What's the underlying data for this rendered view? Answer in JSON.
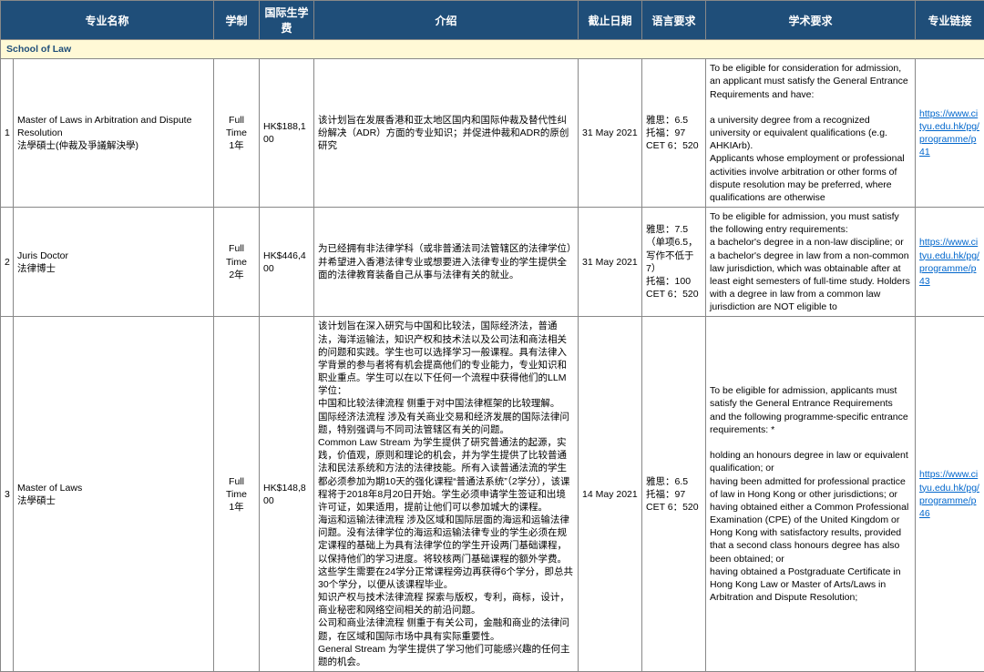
{
  "headers": {
    "name": "专业名称",
    "mode": "学制",
    "fee": "国际生学费",
    "intro": "介绍",
    "deadline": "截止日期",
    "lang": "语言要求",
    "acad": "学术要求",
    "link": "专业链接"
  },
  "section_label": "School of Law",
  "colors": {
    "header_bg": "#1f4e79",
    "header_fg": "#ffffff",
    "section_bg": "#fff9d6",
    "section_fg": "#1f4e79",
    "border": "#888888",
    "link": "#0066cc"
  },
  "rows": [
    {
      "idx": "1",
      "name": "Master of Laws in Arbitration and Dispute Resolution\n法學碩士(仲裁及爭議解決學)",
      "mode": "Full Time\n1年",
      "fee": "HK$188,100",
      "intro": "该计划旨在发展香港和亚太地区国内和国际仲裁及替代性纠纷解决（ADR）方面的专业知识；并促进仲裁和ADR的原创研究",
      "deadline": "31 May 2021",
      "lang": "雅思：6.5\n托福：97\nCET 6：520",
      "acad": "To be eligible for consideration for admission, an applicant must satisfy the General Entrance Requirements and have:\n\na university degree from a recognized university or equivalent qualifications (e.g. AHKIArb).\nApplicants whose employment or professional activities involve arbitration or other forms of dispute resolution may be preferred, where qualifications are otherwise",
      "link_text": "https://www.cityu.edu.hk/pg/programme/p41",
      "link_href": "https://www.cityu.edu.hk/pg/programme/p41"
    },
    {
      "idx": "2",
      "name": "Juris Doctor\n法律博士",
      "mode": "Full Time\n2年",
      "fee": "HK$446,400",
      "intro": "为已经拥有非法律学科（或非普通法司法管辖区的法律学位）并希望进入香港法律专业或想要进入法律专业的学生提供全面的法律教育装备自己从事与法律有关的就业。",
      "deadline": "31 May 2021",
      "lang": "雅思：7.5（单项6.5，写作不低于7）\n托福：100\nCET 6：520",
      "acad": "To be eligible for admission, you must satisfy the following entry requirements:\na bachelor's degree in a non-law discipline; or\na bachelor's degree in law from a non-common law jurisdiction, which was obtainable after at least eight semesters of full-time study.  Holders with a degree in law from a common law jurisdiction are NOT eligible to",
      "link_text": "https://www.cityu.edu.hk/pg/programme/p43",
      "link_href": "https://www.cityu.edu.hk/pg/programme/p43"
    },
    {
      "idx": "3",
      "name": "Master of Laws\n法學碩士",
      "mode": "Full Time\n1年",
      "fee": "HK$148,800",
      "intro": "该计划旨在深入研究与中国和比较法，国际经济法，普通法，海洋运输法，知识产权和技术法以及公司法和商法相关的问题和实践。学生也可以选择学习一般课程。具有法律入学背景的参与者将有机会提高他们的专业能力，专业知识和职业重点。学生可以在以下任何一个流程中获得他们的LLM学位：\n中国和比较法律流程  侧重于对中国法律框架的比较理解。\n国际经济法流程  涉及有关商业交易和经济发展的国际法律问题，特别强调与不同司法管辖区有关的问题。\nCommon Law Stream  为学生提供了研究普通法的起源，实践，价值观，原则和理论的机会，并为学生提供了比较普通法和民法系统和方法的法律技能。所有入读普通法流的学生都必须参加为期10天的强化课程“普通法系统”（2学分），该课程将于2018年8月20日开始。学生必须申请学生签证和出境许可证，如果适用，提前让他们可以参加城大的课程。\n海运和运输法律流程  涉及区域和国际层面的海运和运输法律问题。没有法律学位的海运和运输法律专业的学生必须在规定课程的基础上为具有法律学位的学生开设两门基础课程，以保持他们的学习进度。将较核两门基础课程的额外学费。这些学生需要在24学分正常课程旁边再获得6个学分，即总共30个学分，以便从该课程毕业。\n知识产权与技术法律流程  探索与版权，专利，商标，设计，商业秘密和网络空间相关的前沿问题。\n公司和商业法律流程  侧重于有关公司，金融和商业的法律问题，在区域和国际市场中具有实际重要性。\nGeneral Stream  为学生提供了学习他们可能感兴趣的任何主题的机会。",
      "deadline": "14 May 2021",
      "lang": "雅思：6.5\n托福：97\nCET 6：520",
      "acad": "To be eligible for admission, applicants must satisfy the General Entrance Requirements and the following programme-specific entrance requirements: *\n\nholding an honours degree in law or equivalent qualification; or\nhaving been admitted for professional practice of law in Hong Kong or other jurisdictions; or\nhaving obtained either a Common Professional Examination (CPE) of the United Kingdom or Hong Kong with satisfactory results, provided that a second class honours degree has also been obtained; or\nhaving obtained a Postgraduate Certificate in Hong Kong Law or Master of Arts/Laws in Arbitration and Dispute Resolution;",
      "link_text": "https://www.cityu.edu.hk/pg/programme/p46",
      "link_href": "https://www.cityu.edu.hk/pg/programme/p46"
    }
  ]
}
